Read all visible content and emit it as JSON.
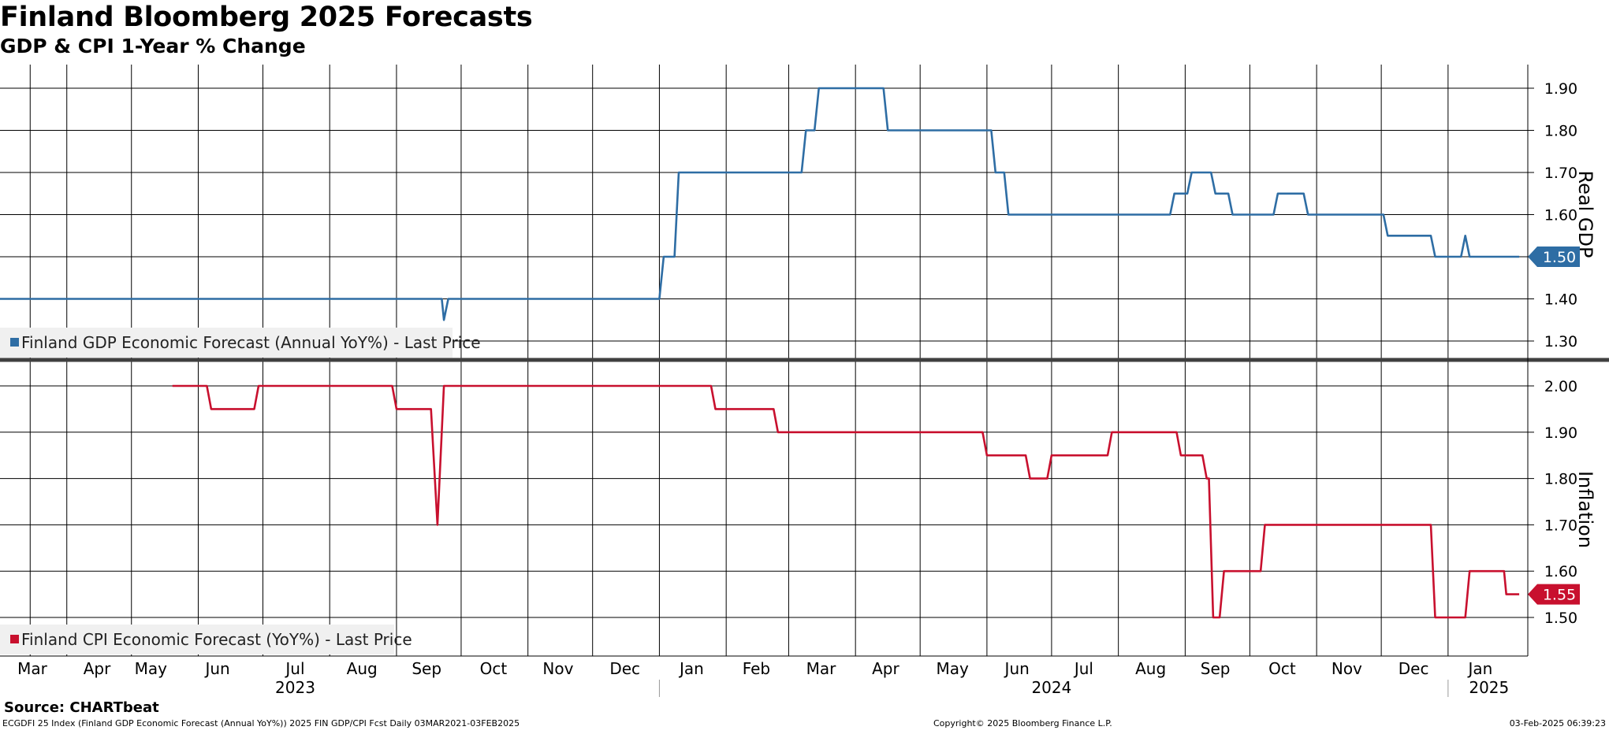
{
  "title": "Finland Bloomberg 2025 Forecasts",
  "subtitle": "GDP & CPI 1-Year % Change",
  "source": "Source: CHARTbeat",
  "footer": {
    "left": "ECGDFI 25 Index (Finland GDP Economic Forecast (Annual YoY%)) 2025 FIN GDP/CPI Fcst  Daily 03MAR2021-03FEB2025",
    "center": "Copyright© 2025 Bloomberg Finance L.P.",
    "right": "03-Feb-2025 06:39:23"
  },
  "colors": {
    "gdp": "#2e6da4",
    "cpi": "#c8102e",
    "grid": "#000000",
    "divider": "#404040"
  },
  "chart_data": [
    {
      "type": "line",
      "panel": "top",
      "axis_label": "Real GDP",
      "ylim": [
        1.25,
        1.95
      ],
      "yticks": [
        "1.30",
        "1.40",
        "1.50",
        "1.60",
        "1.70",
        "1.80",
        "1.90"
      ],
      "legend": "Finland GDP Economic Forecast (Annual YoY%) - Last Price",
      "last_value_label": "1.50",
      "series": [
        {
          "name": "Finland GDP Economic Forecast (Annual YoY%) - Last Price",
          "points": [
            [
              "2023-03-01",
              1.4
            ],
            [
              "2023-09-22",
              1.4
            ],
            [
              "2023-09-23",
              1.35
            ],
            [
              "2023-09-25",
              1.4
            ],
            [
              "2024-01-01",
              1.4
            ],
            [
              "2024-01-03",
              1.5
            ],
            [
              "2024-01-08",
              1.5
            ],
            [
              "2024-01-10",
              1.7
            ],
            [
              "2024-03-07",
              1.7
            ],
            [
              "2024-03-09",
              1.8
            ],
            [
              "2024-03-13",
              1.8
            ],
            [
              "2024-03-15",
              1.9
            ],
            [
              "2024-04-14",
              1.9
            ],
            [
              "2024-04-16",
              1.8
            ],
            [
              "2024-06-03",
              1.8
            ],
            [
              "2024-06-05",
              1.7
            ],
            [
              "2024-06-09",
              1.7
            ],
            [
              "2024-06-11",
              1.6
            ],
            [
              "2024-08-25",
              1.6
            ],
            [
              "2024-08-27",
              1.65
            ],
            [
              "2024-09-02",
              1.65
            ],
            [
              "2024-09-04",
              1.7
            ],
            [
              "2024-09-13",
              1.7
            ],
            [
              "2024-09-15",
              1.65
            ],
            [
              "2024-09-21",
              1.65
            ],
            [
              "2024-09-23",
              1.6
            ],
            [
              "2024-10-12",
              1.6
            ],
            [
              "2024-10-14",
              1.65
            ],
            [
              "2024-10-26",
              1.65
            ],
            [
              "2024-10-28",
              1.6
            ],
            [
              "2024-12-02",
              1.6
            ],
            [
              "2024-12-04",
              1.55
            ],
            [
              "2024-12-24",
              1.55
            ],
            [
              "2024-12-26",
              1.5
            ],
            [
              "2025-01-07",
              1.5
            ],
            [
              "2025-01-09",
              1.55
            ],
            [
              "2025-01-11",
              1.5
            ],
            [
              "2025-02-03",
              1.5
            ]
          ]
        }
      ]
    },
    {
      "type": "line",
      "panel": "bottom",
      "axis_label": "Inflation",
      "ylim": [
        1.45,
        2.05
      ],
      "yticks": [
        "1.50",
        "1.60",
        "1.70",
        "1.80",
        "1.90",
        "2.00"
      ],
      "legend": "Finland CPI Economic Forecast (YoY%) - Last Price",
      "last_value_label": "1.55",
      "series": [
        {
          "name": "Finland CPI Economic Forecast (YoY%) - Last Price",
          "points": [
            [
              "2023-05-20",
              2.0
            ],
            [
              "2023-06-05",
              2.0
            ],
            [
              "2023-06-07",
              1.95
            ],
            [
              "2023-06-27",
              1.95
            ],
            [
              "2023-06-29",
              2.0
            ],
            [
              "2023-08-30",
              2.0
            ],
            [
              "2023-09-01",
              1.95
            ],
            [
              "2023-09-17",
              1.95
            ],
            [
              "2023-09-20",
              1.7
            ],
            [
              "2023-09-23",
              2.0
            ],
            [
              "2024-01-25",
              2.0
            ],
            [
              "2024-01-27",
              1.95
            ],
            [
              "2024-02-23",
              1.95
            ],
            [
              "2024-02-25",
              1.9
            ],
            [
              "2024-05-30",
              1.9
            ],
            [
              "2024-06-01",
              1.85
            ],
            [
              "2024-06-19",
              1.85
            ],
            [
              "2024-06-21",
              1.8
            ],
            [
              "2024-06-29",
              1.8
            ],
            [
              "2024-07-01",
              1.85
            ],
            [
              "2024-07-27",
              1.85
            ],
            [
              "2024-07-29",
              1.9
            ],
            [
              "2024-08-28",
              1.9
            ],
            [
              "2024-08-30",
              1.85
            ],
            [
              "2024-09-09",
              1.85
            ],
            [
              "2024-09-11",
              1.8
            ],
            [
              "2024-09-12",
              1.8
            ],
            [
              "2024-09-14",
              1.5
            ],
            [
              "2024-09-17",
              1.5
            ],
            [
              "2024-09-19",
              1.6
            ],
            [
              "2024-10-06",
              1.6
            ],
            [
              "2024-10-08",
              1.7
            ],
            [
              "2024-12-24",
              1.7
            ],
            [
              "2024-12-26",
              1.5
            ],
            [
              "2025-01-09",
              1.5
            ],
            [
              "2025-01-11",
              1.6
            ],
            [
              "2025-01-27",
              1.6
            ],
            [
              "2025-01-28",
              1.55
            ],
            [
              "2025-02-03",
              1.55
            ]
          ]
        }
      ]
    }
  ],
  "x_axis": {
    "range": [
      "2023-03-01",
      "2025-02-07"
    ],
    "month_labels": [
      {
        "label": "Mar",
        "date": "2023-03-16"
      },
      {
        "label": "Apr",
        "date": "2023-04-15"
      },
      {
        "label": "May",
        "date": "2023-05-10"
      },
      {
        "label": "Jun",
        "date": "2023-06-10"
      },
      {
        "label": "Jul",
        "date": "2023-07-16"
      },
      {
        "label": "Aug",
        "date": "2023-08-16"
      },
      {
        "label": "Sep",
        "date": "2023-09-15"
      },
      {
        "label": "Oct",
        "date": "2023-10-16"
      },
      {
        "label": "Nov",
        "date": "2023-11-15"
      },
      {
        "label": "Dec",
        "date": "2023-12-16"
      },
      {
        "label": "Jan",
        "date": "2024-01-16"
      },
      {
        "label": "Feb",
        "date": "2024-02-15"
      },
      {
        "label": "Mar",
        "date": "2024-03-16"
      },
      {
        "label": "Apr",
        "date": "2024-04-15"
      },
      {
        "label": "May",
        "date": "2024-05-16"
      },
      {
        "label": "Jun",
        "date": "2024-06-15"
      },
      {
        "label": "Jul",
        "date": "2024-07-16"
      },
      {
        "label": "Aug",
        "date": "2024-08-16"
      },
      {
        "label": "Sep",
        "date": "2024-09-15"
      },
      {
        "label": "Oct",
        "date": "2024-10-16"
      },
      {
        "label": "Nov",
        "date": "2024-11-15"
      },
      {
        "label": "Dec",
        "date": "2024-12-16"
      },
      {
        "label": "Jan",
        "date": "2025-01-16"
      }
    ],
    "year_labels": [
      {
        "label": "2023",
        "date": "2023-07-16"
      },
      {
        "label": "2024",
        "date": "2024-07-01"
      },
      {
        "label": "2025",
        "date": "2025-01-20"
      }
    ],
    "gridlines": [
      "2023-03-15",
      "2023-04-01",
      "2023-05-01",
      "2023-06-01",
      "2023-07-01",
      "2023-08-01",
      "2023-09-01",
      "2023-10-01",
      "2023-11-01",
      "2023-12-01",
      "2024-01-01",
      "2024-02-01",
      "2024-03-01",
      "2024-04-01",
      "2024-05-01",
      "2024-06-01",
      "2024-07-01",
      "2024-08-01",
      "2024-09-01",
      "2024-10-01",
      "2024-11-01",
      "2024-12-01",
      "2025-01-01"
    ],
    "year_separators": [
      "2024-01-01",
      "2025-01-01"
    ]
  }
}
